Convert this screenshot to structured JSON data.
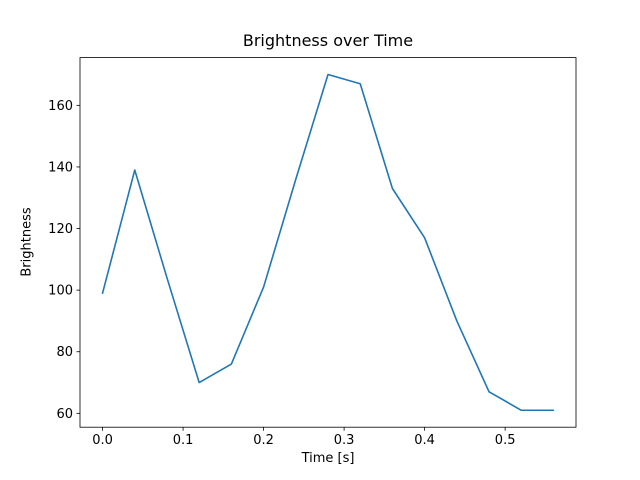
{
  "chart_data": {
    "type": "line",
    "title": "Brightness over Time",
    "xlabel": "Time [s]",
    "ylabel": "Brightness",
    "line_color": "#1f77b4",
    "background_color": "#ffffff",
    "x": [
      0.0,
      0.04,
      0.08,
      0.12,
      0.16,
      0.2,
      0.24,
      0.28,
      0.32,
      0.36,
      0.4,
      0.44,
      0.48,
      0.52,
      0.56
    ],
    "y": [
      99,
      139,
      104,
      70,
      76,
      101,
      136,
      170,
      167,
      133,
      117,
      90,
      67,
      61,
      61
    ],
    "xlim": [
      -0.028,
      0.588
    ],
    "ylim": [
      55.5,
      175.5
    ],
    "xticks": [
      0.0,
      0.1,
      0.2,
      0.3,
      0.4,
      0.5
    ],
    "xtick_labels": [
      "0.0",
      "0.1",
      "0.2",
      "0.3",
      "0.4",
      "0.5"
    ],
    "yticks": [
      60,
      80,
      100,
      120,
      140,
      160
    ],
    "ytick_labels": [
      "60",
      "80",
      "100",
      "120",
      "140",
      "160"
    ],
    "grid": false,
    "legend": null
  }
}
